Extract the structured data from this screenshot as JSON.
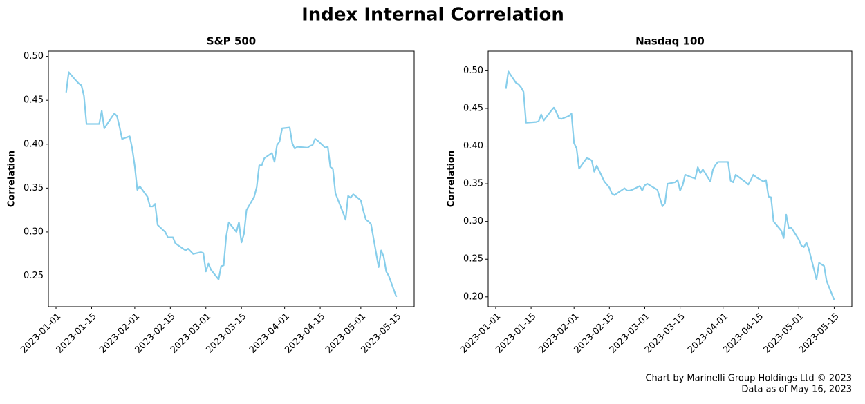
{
  "title": "Index Internal Correlation",
  "footnote": [
    "Chart by Marinelli Group Holdings Ltd © 2023",
    "Data as of May 16, 2023"
  ],
  "chart_data": [
    {
      "type": "line",
      "title": "S&P 500",
      "ylabel": "Correlation",
      "x": [
        "2023-01-05",
        "2023-01-06",
        "2023-01-09",
        "2023-01-10",
        "2023-01-11",
        "2023-01-12",
        "2023-01-13",
        "2023-01-17",
        "2023-01-18",
        "2023-01-19",
        "2023-01-20",
        "2023-01-23",
        "2023-01-24",
        "2023-01-25",
        "2023-01-26",
        "2023-01-27",
        "2023-01-30",
        "2023-01-31",
        "2023-02-01",
        "2023-02-02",
        "2023-02-03",
        "2023-02-06",
        "2023-02-07",
        "2023-02-08",
        "2023-02-09",
        "2023-02-10",
        "2023-02-13",
        "2023-02-14",
        "2023-02-15",
        "2023-02-16",
        "2023-02-17",
        "2023-02-21",
        "2023-02-22",
        "2023-02-23",
        "2023-02-24",
        "2023-02-27",
        "2023-02-28",
        "2023-03-01",
        "2023-03-02",
        "2023-03-03",
        "2023-03-06",
        "2023-03-07",
        "2023-03-08",
        "2023-03-09",
        "2023-03-10",
        "2023-03-13",
        "2023-03-14",
        "2023-03-15",
        "2023-03-16",
        "2023-03-17",
        "2023-03-20",
        "2023-03-21",
        "2023-03-22",
        "2023-03-23",
        "2023-03-24",
        "2023-03-27",
        "2023-03-28",
        "2023-03-29",
        "2023-03-30",
        "2023-03-31",
        "2023-04-03",
        "2023-04-04",
        "2023-04-05",
        "2023-04-06",
        "2023-04-10",
        "2023-04-11",
        "2023-04-12",
        "2023-04-13",
        "2023-04-14",
        "2023-04-17",
        "2023-04-18",
        "2023-04-19",
        "2023-04-20",
        "2023-04-21",
        "2023-04-24",
        "2023-04-25",
        "2023-04-26",
        "2023-04-27",
        "2023-04-28",
        "2023-05-01",
        "2023-05-02",
        "2023-05-03",
        "2023-05-04",
        "2023-05-05",
        "2023-05-08",
        "2023-05-09",
        "2023-05-10",
        "2023-05-11",
        "2023-05-12",
        "2023-05-15"
      ],
      "values": [
        0.459,
        0.482,
        0.472,
        0.469,
        0.467,
        0.455,
        0.423,
        0.423,
        0.423,
        0.438,
        0.418,
        0.431,
        0.435,
        0.432,
        0.42,
        0.406,
        0.409,
        0.395,
        0.375,
        0.348,
        0.352,
        0.34,
        0.329,
        0.329,
        0.332,
        0.308,
        0.3,
        0.294,
        0.294,
        0.294,
        0.287,
        0.279,
        0.281,
        0.278,
        0.275,
        0.277,
        0.276,
        0.255,
        0.264,
        0.257,
        0.246,
        0.261,
        0.262,
        0.295,
        0.311,
        0.3,
        0.311,
        0.288,
        0.298,
        0.325,
        0.34,
        0.351,
        0.376,
        0.376,
        0.384,
        0.39,
        0.38,
        0.399,
        0.403,
        0.418,
        0.419,
        0.401,
        0.395,
        0.397,
        0.396,
        0.398,
        0.399,
        0.406,
        0.404,
        0.396,
        0.397,
        0.374,
        0.372,
        0.344,
        0.322,
        0.314,
        0.341,
        0.339,
        0.343,
        0.336,
        0.324,
        0.314,
        0.312,
        0.309,
        0.26,
        0.279,
        0.272,
        0.255,
        0.25,
        0.226
      ],
      "color": "#87ceeb",
      "xlim": [
        "2022-12-29",
        "2023-05-22"
      ],
      "ylim": [
        0.215,
        0.506
      ],
      "xticks": [
        "2023-01-01",
        "2023-01-15",
        "2023-02-01",
        "2023-02-15",
        "2023-03-01",
        "2023-03-15",
        "2023-04-01",
        "2023-04-15",
        "2023-05-01",
        "2023-05-15"
      ],
      "yticks": [
        0.25,
        {
          "value": 0.3,
          "label": "0.30"
        },
        0.35,
        {
          "value": 0.4,
          "label": "0.40"
        },
        0.45,
        {
          "value": 0.5,
          "label": "0.50"
        }
      ]
    },
    {
      "type": "line",
      "title": "Nasdaq 100",
      "ylabel": "Correlation",
      "x": [
        "2023-01-05",
        "2023-01-06",
        "2023-01-09",
        "2023-01-10",
        "2023-01-11",
        "2023-01-12",
        "2023-01-13",
        "2023-01-17",
        "2023-01-18",
        "2023-01-19",
        "2023-01-20",
        "2023-01-23",
        "2023-01-24",
        "2023-01-25",
        "2023-01-26",
        "2023-01-27",
        "2023-01-30",
        "2023-01-31",
        "2023-02-01",
        "2023-02-02",
        "2023-02-03",
        "2023-02-06",
        "2023-02-07",
        "2023-02-08",
        "2023-02-09",
        "2023-02-10",
        "2023-02-13",
        "2023-02-14",
        "2023-02-15",
        "2023-02-16",
        "2023-02-17",
        "2023-02-21",
        "2023-02-22",
        "2023-02-23",
        "2023-02-24",
        "2023-02-27",
        "2023-02-28",
        "2023-03-01",
        "2023-03-02",
        "2023-03-03",
        "2023-03-06",
        "2023-03-07",
        "2023-03-08",
        "2023-03-09",
        "2023-03-10",
        "2023-03-13",
        "2023-03-14",
        "2023-03-15",
        "2023-03-16",
        "2023-03-17",
        "2023-03-20",
        "2023-03-21",
        "2023-03-22",
        "2023-03-23",
        "2023-03-24",
        "2023-03-27",
        "2023-03-28",
        "2023-03-29",
        "2023-03-30",
        "2023-03-31",
        "2023-04-03",
        "2023-04-04",
        "2023-04-05",
        "2023-04-06",
        "2023-04-10",
        "2023-04-11",
        "2023-04-12",
        "2023-04-13",
        "2023-04-14",
        "2023-04-17",
        "2023-04-18",
        "2023-04-19",
        "2023-04-20",
        "2023-04-21",
        "2023-04-24",
        "2023-04-25",
        "2023-04-26",
        "2023-04-27",
        "2023-04-28",
        "2023-05-01",
        "2023-05-02",
        "2023-05-03",
        "2023-05-04",
        "2023-05-05",
        "2023-05-08",
        "2023-05-09",
        "2023-05-10",
        "2023-05-11",
        "2023-05-12",
        "2023-05-15"
      ],
      "values": [
        0.476,
        0.499,
        0.484,
        0.482,
        0.478,
        0.472,
        0.431,
        0.432,
        0.433,
        0.442,
        0.434,
        0.447,
        0.451,
        0.445,
        0.437,
        0.436,
        0.44,
        0.443,
        0.404,
        0.397,
        0.37,
        0.384,
        0.383,
        0.381,
        0.366,
        0.374,
        0.353,
        0.349,
        0.345,
        0.337,
        0.335,
        0.344,
        0.341,
        0.341,
        0.342,
        0.347,
        0.341,
        0.348,
        0.35,
        0.348,
        0.342,
        0.331,
        0.32,
        0.324,
        0.35,
        0.352,
        0.355,
        0.341,
        0.348,
        0.362,
        0.358,
        0.357,
        0.372,
        0.364,
        0.369,
        0.353,
        0.369,
        0.375,
        0.379,
        0.379,
        0.379,
        0.354,
        0.352,
        0.362,
        0.352,
        0.349,
        0.355,
        0.362,
        0.359,
        0.353,
        0.355,
        0.333,
        0.332,
        0.3,
        0.288,
        0.278,
        0.309,
        0.291,
        0.292,
        0.276,
        0.268,
        0.266,
        0.272,
        0.263,
        0.223,
        0.245,
        0.243,
        0.241,
        0.221,
        0.196
      ],
      "color": "#87ceeb",
      "xlim": [
        "2022-12-29",
        "2023-05-22"
      ],
      "ylim": [
        0.187,
        0.526
      ],
      "xticks": [
        "2023-01-01",
        "2023-01-15",
        "2023-02-01",
        "2023-02-15",
        "2023-03-01",
        "2023-03-15",
        "2023-04-01",
        "2023-04-15",
        "2023-05-01",
        "2023-05-15"
      ],
      "yticks": [
        {
          "value": 0.2,
          "label": "0.20"
        },
        0.25,
        {
          "value": 0.3,
          "label": "0.30"
        },
        0.35,
        {
          "value": 0.4,
          "label": "0.40"
        },
        0.45,
        {
          "value": 0.5,
          "label": "0.50"
        }
      ]
    }
  ]
}
